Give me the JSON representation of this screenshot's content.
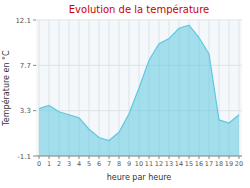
{
  "chart_data": {
    "type": "area",
    "title": "Evolution de la température",
    "x_label": "heure par heure",
    "y_label": "Température en °C",
    "x": [
      0,
      1,
      2,
      3,
      4,
      5,
      6,
      7,
      8,
      9,
      10,
      11,
      12,
      13,
      14,
      15,
      16,
      17,
      18,
      19,
      20
    ],
    "values": [
      3.5,
      3.8,
      3.2,
      2.9,
      2.6,
      1.5,
      0.7,
      0.4,
      1.2,
      3.0,
      5.5,
      8.2,
      9.8,
      10.3,
      11.3,
      11.6,
      10.4,
      8.8,
      2.4,
      2.1,
      2.9
    ],
    "color": "#60c8e0",
    "xlim": [
      -0.3,
      20.3
    ],
    "xticks": [
      0,
      1,
      2,
      3,
      4,
      5,
      6,
      7,
      8,
      9,
      10,
      11,
      12,
      13,
      14,
      15,
      16,
      17,
      18,
      19,
      20
    ],
    "ylim": [
      -1.1,
      12.1
    ],
    "yticks": [
      -1.1,
      3.3,
      7.7,
      12.1
    ],
    "grid": true
  }
}
